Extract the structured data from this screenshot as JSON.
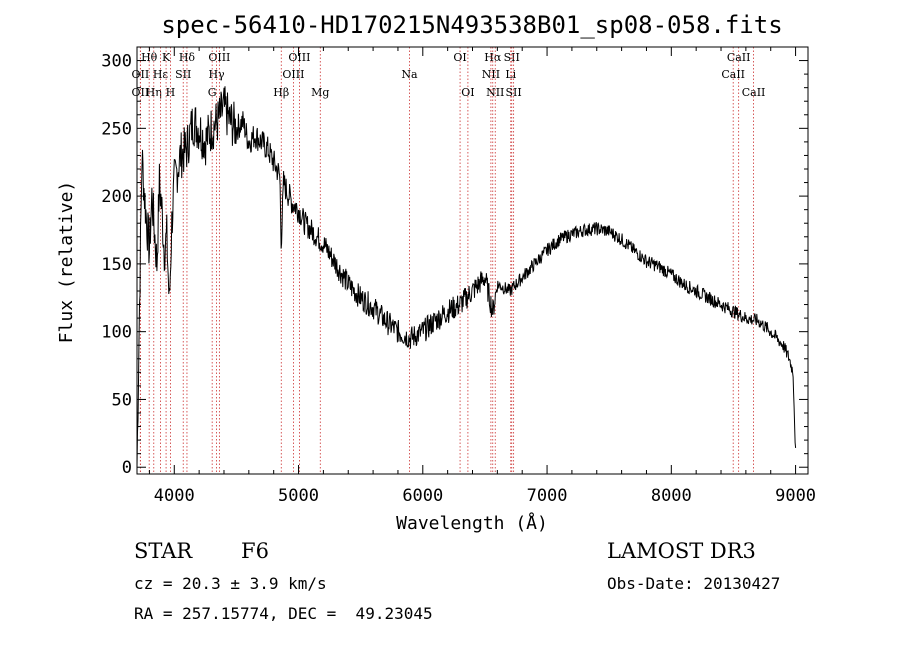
{
  "chart_data": {
    "type": "line",
    "title": "spec-56410-HD170215N493538B01_sp08-058.fits",
    "xlabel": "Wavelength (Å)",
    "ylabel": "Flux (relative)",
    "xlim": [
      3700,
      9100
    ],
    "ylim": [
      -5,
      310
    ],
    "xticks": [
      4000,
      5000,
      6000,
      7000,
      8000,
      9000
    ],
    "yticks": [
      0,
      50,
      100,
      150,
      200,
      250,
      300
    ],
    "spectrum": {
      "x": [
        3700,
        3720,
        3740,
        3760,
        3780,
        3800,
        3820,
        3840,
        3860,
        3880,
        3900,
        3920,
        3940,
        3960,
        3980,
        4000,
        4050,
        4100,
        4150,
        4200,
        4250,
        4300,
        4350,
        4400,
        4450,
        4500,
        4550,
        4600,
        4650,
        4700,
        4750,
        4800,
        4850,
        4861,
        4880,
        4900,
        4950,
        5000,
        5050,
        5100,
        5150,
        5200,
        5300,
        5400,
        5500,
        5600,
        5700,
        5800,
        5900,
        6000,
        6100,
        6200,
        6300,
        6400,
        6500,
        6563,
        6600,
        6700,
        6800,
        6900,
        7000,
        7100,
        7200,
        7300,
        7400,
        7500,
        7600,
        7700,
        7800,
        7900,
        8000,
        8100,
        8200,
        8300,
        8400,
        8500,
        8600,
        8700,
        8800,
        8900,
        8950,
        8980,
        9000
      ],
      "y": [
        0,
        120,
        230,
        200,
        180,
        160,
        200,
        175,
        150,
        210,
        190,
        160,
        170,
        120,
        180,
        210,
        230,
        235,
        255,
        250,
        240,
        250,
        255,
        265,
        255,
        250,
        255,
        240,
        245,
        240,
        235,
        225,
        215,
        165,
        210,
        205,
        195,
        190,
        180,
        175,
        170,
        165,
        150,
        135,
        125,
        118,
        108,
        100,
        95,
        100,
        108,
        115,
        120,
        130,
        140,
        115,
        135,
        130,
        140,
        150,
        160,
        168,
        172,
        175,
        176,
        174,
        168,
        160,
        152,
        148,
        142,
        135,
        130,
        125,
        120,
        115,
        110,
        108,
        100,
        90,
        80,
        70,
        10
      ]
    },
    "lines": [
      {
        "label": "Hθ",
        "x": 3798,
        "row": 1
      },
      {
        "label": "OII",
        "x": 3727,
        "row": 2
      },
      {
        "label": "OII",
        "x": 3727,
        "row": 3
      },
      {
        "label": "Hη",
        "x": 3835,
        "row": 3
      },
      {
        "label": "K",
        "x": 3934,
        "row": 1
      },
      {
        "label": "Hε",
        "x": 3889,
        "row": 2
      },
      {
        "label": "H",
        "x": 3969,
        "row": 3
      },
      {
        "label": "SII",
        "x": 4072,
        "row": 2
      },
      {
        "label": "Hδ",
        "x": 4102,
        "row": 1
      },
      {
        "label": "OIII",
        "x": 4363,
        "row": 1
      },
      {
        "label": "Hγ",
        "x": 4340,
        "row": 2
      },
      {
        "label": "G",
        "x": 4305,
        "row": 3
      },
      {
        "label": "Hβ",
        "x": 4861,
        "row": 3
      },
      {
        "label": "OIII",
        "x": 5007,
        "row": 1
      },
      {
        "label": "OIII",
        "x": 4959,
        "row": 2
      },
      {
        "label": "Mg",
        "x": 5175,
        "row": 3
      },
      {
        "label": "Na",
        "x": 5893,
        "row": 2
      },
      {
        "label": "OI",
        "x": 6300,
        "row": 1
      },
      {
        "label": "OI",
        "x": 6363,
        "row": 3
      },
      {
        "label": "Hα",
        "x": 6563,
        "row": 1
      },
      {
        "label": "SII",
        "x": 6716,
        "row": 1
      },
      {
        "label": "NII",
        "x": 6548,
        "row": 2
      },
      {
        "label": "Li",
        "x": 6708,
        "row": 2
      },
      {
        "label": "NII",
        "x": 6583,
        "row": 3
      },
      {
        "label": "SII",
        "x": 6731,
        "row": 3
      },
      {
        "label": "CaII",
        "x": 8542,
        "row": 1
      },
      {
        "label": "CaII",
        "x": 8498,
        "row": 2
      },
      {
        "label": "CaII",
        "x": 8662,
        "row": 3
      }
    ],
    "line_color": "#cc3333"
  },
  "info": {
    "class": "STAR",
    "subclass": "F6",
    "cz": "cz = 20.3 ± 3.9 km/s",
    "radec": "RA = 257.15774, DEC =  49.23045",
    "survey": "LAMOST DR3",
    "obsdate": "Obs-Date: 20130427"
  }
}
